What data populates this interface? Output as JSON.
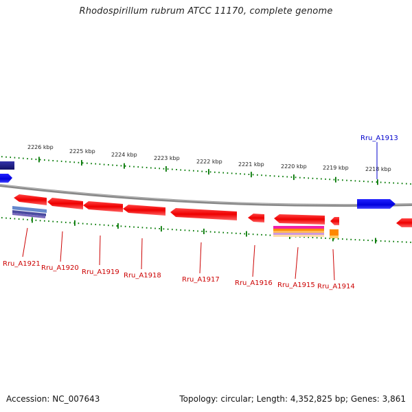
{
  "title": "Rhodospirillum rubrum ATCC 11170, complete genome",
  "footer": {
    "accession": "Accession: NC_007643",
    "summary": "Topology: circular; Length: 4,352,825 bp; Genes: 3,861"
  },
  "colors": {
    "forward_gene": "#0000ee",
    "reverse_gene": "#ff0000",
    "tick": "#007700",
    "backbone": "#888888",
    "label_red": "#cc0000",
    "label_blue": "#0000cc"
  },
  "kbp_labels": [
    "2226 kbp",
    "2225 kbp",
    "2224 kbp",
    "2223 kbp",
    "2222 kbp",
    "2221 kbp",
    "2220 kbp",
    "2219 kbp",
    "2218 kbp"
  ],
  "gene_labels": [
    {
      "text": "Rru_A1913",
      "strand": "forward"
    },
    {
      "text": "Rru_A1914",
      "strand": "reverse"
    },
    {
      "text": "Rru_A1915",
      "strand": "reverse"
    },
    {
      "text": "Rru_A1916",
      "strand": "reverse"
    },
    {
      "text": "Rru_A1917",
      "strand": "reverse"
    },
    {
      "text": "Rru_A1918",
      "strand": "reverse"
    },
    {
      "text": "Rru_A1919",
      "strand": "reverse"
    },
    {
      "text": "Rru_A1920",
      "strand": "reverse"
    },
    {
      "text": "Rru_A1921",
      "strand": "reverse"
    }
  ]
}
